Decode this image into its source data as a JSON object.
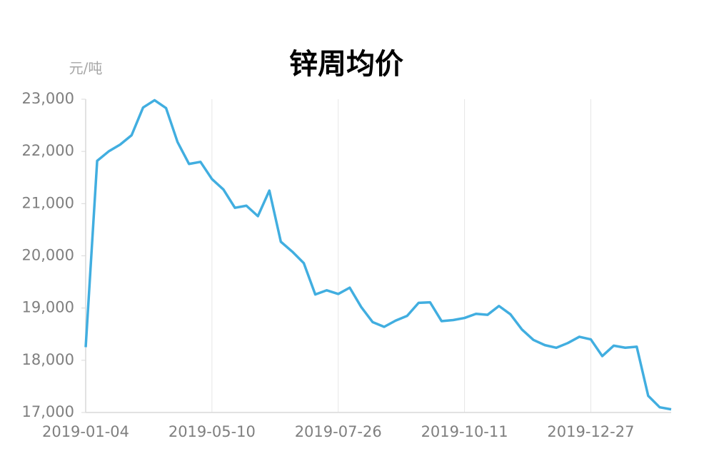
{
  "chart_data": {
    "type": "line",
    "title": "锌周均价",
    "y_unit": "元/吨",
    "categories": [
      "2019-01-04",
      null,
      null,
      null,
      null,
      null,
      null,
      null,
      null,
      null,
      null,
      "2019-05-10",
      null,
      null,
      null,
      null,
      null,
      null,
      null,
      null,
      null,
      null,
      "2019-07-26",
      null,
      null,
      null,
      null,
      null,
      null,
      null,
      null,
      null,
      null,
      "2019-10-11",
      null,
      null,
      null,
      null,
      null,
      null,
      null,
      null,
      null,
      null,
      "2019-12-27",
      null,
      null,
      null,
      null,
      null,
      null,
      null
    ],
    "series": [
      {
        "name": "锌周均价",
        "color": "#41aee0",
        "values": [
          18250,
          21820,
          22000,
          22130,
          22310,
          22840,
          22980,
          22830,
          22180,
          21760,
          21800,
          21470,
          21270,
          20920,
          20960,
          20760,
          21250,
          20270,
          20080,
          19860,
          19260,
          19340,
          19270,
          19390,
          19020,
          18730,
          18640,
          18760,
          18850,
          19100,
          19110,
          18750,
          18770,
          18810,
          18890,
          18870,
          19040,
          18880,
          18590,
          18390,
          18290,
          18240,
          18330,
          18450,
          18400,
          18080,
          18280,
          18240,
          18260,
          17320,
          17100,
          17060
        ]
      }
    ],
    "ylim": [
      17000,
      23000
    ],
    "yticks": [
      {
        "value": 17000,
        "label": "17,000"
      },
      {
        "value": 18000,
        "label": "18,000"
      },
      {
        "value": 19000,
        "label": "19,000"
      },
      {
        "value": 20000,
        "label": "20,000"
      },
      {
        "value": 21000,
        "label": "21,000"
      },
      {
        "value": 22000,
        "label": "22,000"
      },
      {
        "value": 23000,
        "label": "23,000"
      }
    ],
    "grid": true
  }
}
